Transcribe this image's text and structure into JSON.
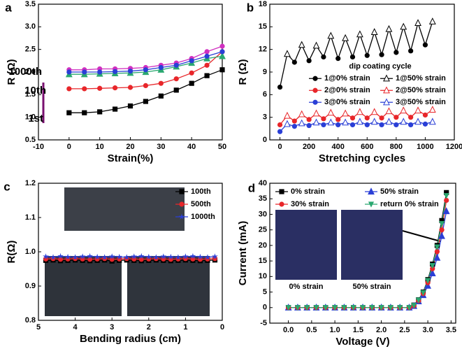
{
  "chart_data": [
    {
      "type": "line",
      "label": "a",
      "x_label": "Strain(%)",
      "y_label": "R (Ω)",
      "xlim": [
        -10,
        50
      ],
      "xticks": [
        -10,
        0,
        10,
        20,
        30,
        40,
        50
      ],
      "ylim": [
        0.5,
        3.5
      ],
      "yticks": [
        0.5,
        {
          "value": 1,
          "label": "1.0"
        },
        1.5,
        {
          "value": 2,
          "label": "2.0"
        },
        2.5,
        {
          "value": 3,
          "label": "3.0"
        },
        3.5
      ],
      "annotations": [
        "1000th",
        "10th",
        "1st"
      ],
      "x": [
        0,
        5,
        10,
        15,
        20,
        25,
        30,
        35,
        40,
        45,
        50
      ],
      "series": [
        {
          "color": "#000000",
          "marker": "square",
          "values": [
            1.1,
            1.1,
            1.12,
            1.18,
            1.25,
            1.35,
            1.47,
            1.6,
            1.75,
            1.92,
            2.05
          ]
        },
        {
          "color": "#e8262a",
          "marker": "circle",
          "values": [
            1.63,
            1.63,
            1.64,
            1.65,
            1.66,
            1.7,
            1.75,
            1.85,
            1.98,
            2.15,
            2.45
          ]
        },
        {
          "color": "#d030c0",
          "marker": "circle",
          "values": [
            2.05,
            2.05,
            2.07,
            2.07,
            2.08,
            2.1,
            2.15,
            2.2,
            2.3,
            2.45,
            2.57
          ]
        },
        {
          "color": "#2aa870",
          "marker": "triangle",
          "values": [
            1.95,
            1.95,
            1.96,
            1.97,
            1.98,
            2.0,
            2.05,
            2.12,
            2.2,
            2.3,
            2.35
          ]
        },
        {
          "color": "#2a3fd6",
          "marker": "circle",
          "values": [
            2.0,
            2.0,
            2.0,
            2.01,
            2.02,
            2.05,
            2.1,
            2.15,
            2.25,
            2.35,
            2.45
          ]
        }
      ]
    },
    {
      "type": "line",
      "label": "b",
      "x_label": "Stretching cycles",
      "y_label": "R (Ω)",
      "xlim": [
        -70,
        1200
      ],
      "xticks": [
        0,
        200,
        400,
        600,
        800,
        1000,
        1200
      ],
      "ylim": [
        0,
        18
      ],
      "yticks": [
        0,
        3,
        6,
        9,
        12,
        15,
        18
      ],
      "connect_pairs": true,
      "legend": "center right",
      "legend_columns": 2,
      "legend_title": "dip coating cycle",
      "series": [
        {
          "name": "1@0% strain",
          "color": "#000000",
          "marker": "circle",
          "x": [
            0,
            100,
            200,
            300,
            400,
            500,
            600,
            700,
            800,
            900,
            1000
          ],
          "values": [
            7,
            10.3,
            10.5,
            11,
            10.8,
            11,
            11.2,
            11.3,
            11.6,
            11.8,
            12.6
          ]
        },
        {
          "name": "1@50% strain",
          "color": "#000000",
          "marker": "triangle-open",
          "x": [
            50,
            150,
            250,
            350,
            450,
            550,
            650,
            750,
            850,
            950,
            1050
          ],
          "values": [
            11.4,
            12.6,
            12.5,
            13.8,
            13.5,
            14,
            14.3,
            14.7,
            15,
            15.5,
            15.7
          ]
        },
        {
          "name": "2@0% strain",
          "color": "#e8262a",
          "marker": "circle",
          "x": [
            0,
            100,
            200,
            300,
            400,
            500,
            600,
            700,
            800,
            900,
            1000
          ],
          "values": [
            2,
            2.5,
            2.7,
            2.8,
            2.7,
            2.9,
            2.9,
            2.9,
            3,
            3,
            3.3
          ]
        },
        {
          "name": "2@50% strain",
          "color": "#e8262a",
          "marker": "triangle-open",
          "x": [
            50,
            150,
            250,
            350,
            450,
            550,
            650,
            750,
            850,
            950,
            1050
          ],
          "values": [
            3.2,
            3.4,
            3.5,
            3.6,
            3.5,
            3.7,
            3.7,
            3.8,
            3.9,
            3.9,
            4
          ]
        },
        {
          "name": "3@0% strain",
          "color": "#2a3fd6",
          "marker": "circle",
          "x": [
            0,
            100,
            200,
            300,
            400,
            500,
            600,
            700,
            800,
            900,
            1000
          ],
          "values": [
            1.1,
            1.8,
            1.9,
            2,
            2,
            2,
            2,
            2,
            2,
            2,
            2.1
          ]
        },
        {
          "name": "3@50% strain",
          "color": "#2a3fd6",
          "marker": "triangle-open",
          "x": [
            50,
            150,
            250,
            350,
            450,
            550,
            650,
            750,
            850,
            950,
            1050
          ],
          "values": [
            2.1,
            2.2,
            2.3,
            2.3,
            2.3,
            2.4,
            2.4,
            2.4,
            2.4,
            2.4,
            2.4
          ]
        }
      ]
    },
    {
      "type": "line",
      "label": "c",
      "x_label": "Bending radius (cm)",
      "y_label": "R(Ω)",
      "xlim": [
        5,
        0
      ],
      "xticks": [
        5,
        4,
        3,
        2,
        1,
        0
      ],
      "ylim": [
        0.8,
        1.2
      ],
      "yticks": [
        0.8,
        0.9,
        {
          "value": 1,
          "label": "1.0"
        },
        1.1,
        1.2
      ],
      "legend": "upper right",
      "legend_columns": 1,
      "x": [
        4.8,
        4.6,
        4.4,
        4.2,
        4.0,
        3.8,
        3.6,
        3.4,
        3.2,
        3.0,
        2.8,
        2.6,
        2.4,
        2.2,
        2.0,
        1.8,
        1.6,
        1.4,
        1.2,
        1.0,
        0.8,
        0.6,
        0.4,
        0.2
      ],
      "series": [
        {
          "name": "100th",
          "color": "#000000",
          "marker": "square",
          "values": [
            0.975,
            0.976,
            0.974,
            0.975,
            0.976,
            0.975,
            0.974,
            0.975,
            0.976,
            0.973,
            0.975,
            0.976,
            0.975,
            0.974,
            0.975,
            0.976,
            0.975,
            0.974,
            0.975,
            0.976,
            0.975,
            0.974,
            0.975,
            0.976
          ]
        },
        {
          "name": "500th",
          "color": "#e8262a",
          "marker": "circle",
          "values": [
            0.979,
            0.98,
            0.978,
            0.979,
            0.98,
            0.979,
            0.978,
            0.979,
            0.98,
            0.978,
            0.979,
            0.98,
            0.979,
            0.978,
            0.979,
            0.98,
            0.979,
            0.978,
            0.979,
            0.98,
            0.979,
            0.978,
            0.979,
            0.98
          ]
        },
        {
          "name": "1000th",
          "color": "#2a3fd6",
          "marker": "star",
          "values": [
            0.986,
            0.984,
            0.987,
            0.985,
            0.984,
            0.986,
            0.987,
            0.985,
            0.984,
            0.986,
            0.985,
            0.984,
            0.986,
            0.987,
            0.985,
            0.984,
            0.986,
            0.985,
            0.984,
            0.986,
            0.987,
            0.985,
            0.984,
            0.986
          ]
        }
      ]
    },
    {
      "type": "line",
      "label": "d",
      "x_label": "Voltage (V)",
      "y_label": "Current (mA)",
      "xlim": [
        -0.4,
        3.6
      ],
      "xticks": [
        {
          "value": 0,
          "label": "0.0"
        },
        0.5,
        {
          "value": 1,
          "label": "1.0"
        },
        1.5,
        {
          "value": 2,
          "label": "2.0"
        },
        2.5,
        {
          "value": 3,
          "label": "3.0"
        },
        3.5
      ],
      "ylim": [
        -5,
        40
      ],
      "yticks": [
        -5,
        0,
        5,
        10,
        15,
        20,
        25,
        30,
        35,
        40
      ],
      "legend": "upper left",
      "legend_columns": 2,
      "annotations": [
        "0% strain",
        "50% strain"
      ],
      "x": [
        0,
        0.2,
        0.4,
        0.6,
        0.8,
        1.0,
        1.2,
        1.4,
        1.6,
        1.8,
        2.0,
        2.2,
        2.4,
        2.6,
        2.7,
        2.8,
        2.9,
        3.0,
        3.1,
        3.2,
        3.3,
        3.4
      ],
      "series": [
        {
          "name": "0% strain",
          "color": "#000000",
          "marker": "square",
          "values": [
            0,
            0,
            0,
            0,
            0,
            0,
            0,
            0,
            0,
            0,
            0,
            0,
            0,
            0,
            0.8,
            2.5,
            5,
            9,
            14,
            20,
            28,
            37
          ]
        },
        {
          "name": "50% strain",
          "color": "#2a3fd6",
          "marker": "triangle",
          "values": [
            0,
            0,
            0,
            0,
            0,
            0,
            0,
            0,
            0,
            0,
            0,
            0,
            0,
            0,
            0.5,
            2,
            4,
            7,
            11,
            16,
            23,
            31
          ]
        },
        {
          "name": "30% strain",
          "color": "#e8262a",
          "marker": "circle",
          "values": [
            0,
            0,
            0,
            0,
            0,
            0,
            0,
            0,
            0,
            0,
            0,
            0,
            0,
            0,
            0.6,
            2.2,
            4.5,
            8,
            12.5,
            18,
            25,
            34.5
          ]
        },
        {
          "name": "return 0% strain",
          "color": "#2aa870",
          "marker": "triangle-down",
          "values": [
            0,
            0,
            0,
            0,
            0,
            0,
            0,
            0,
            0,
            0,
            0,
            0,
            0,
            0,
            0.7,
            2.4,
            4.8,
            8.7,
            13.5,
            19.5,
            27,
            36
          ]
        }
      ]
    }
  ]
}
